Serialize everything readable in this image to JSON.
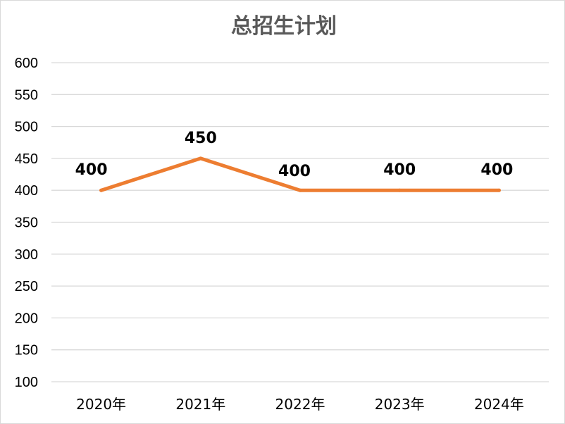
{
  "chart_data": {
    "type": "line",
    "title": "总招生计划",
    "xlabel": "",
    "ylabel": "",
    "categories": [
      "2020年",
      "2021年",
      "2022年",
      "2023年",
      "2024年"
    ],
    "series": [
      {
        "values": [
          400,
          450,
          400,
          400,
          400
        ],
        "color": "#ed7d31"
      }
    ],
    "data_labels": [
      "400",
      "450",
      "400",
      "400",
      "400"
    ],
    "ylim": [
      100,
      600
    ],
    "yticks": [
      600,
      550,
      500,
      450,
      400,
      350,
      300,
      250,
      200,
      150,
      100
    ],
    "grid": true,
    "legend": "none"
  }
}
